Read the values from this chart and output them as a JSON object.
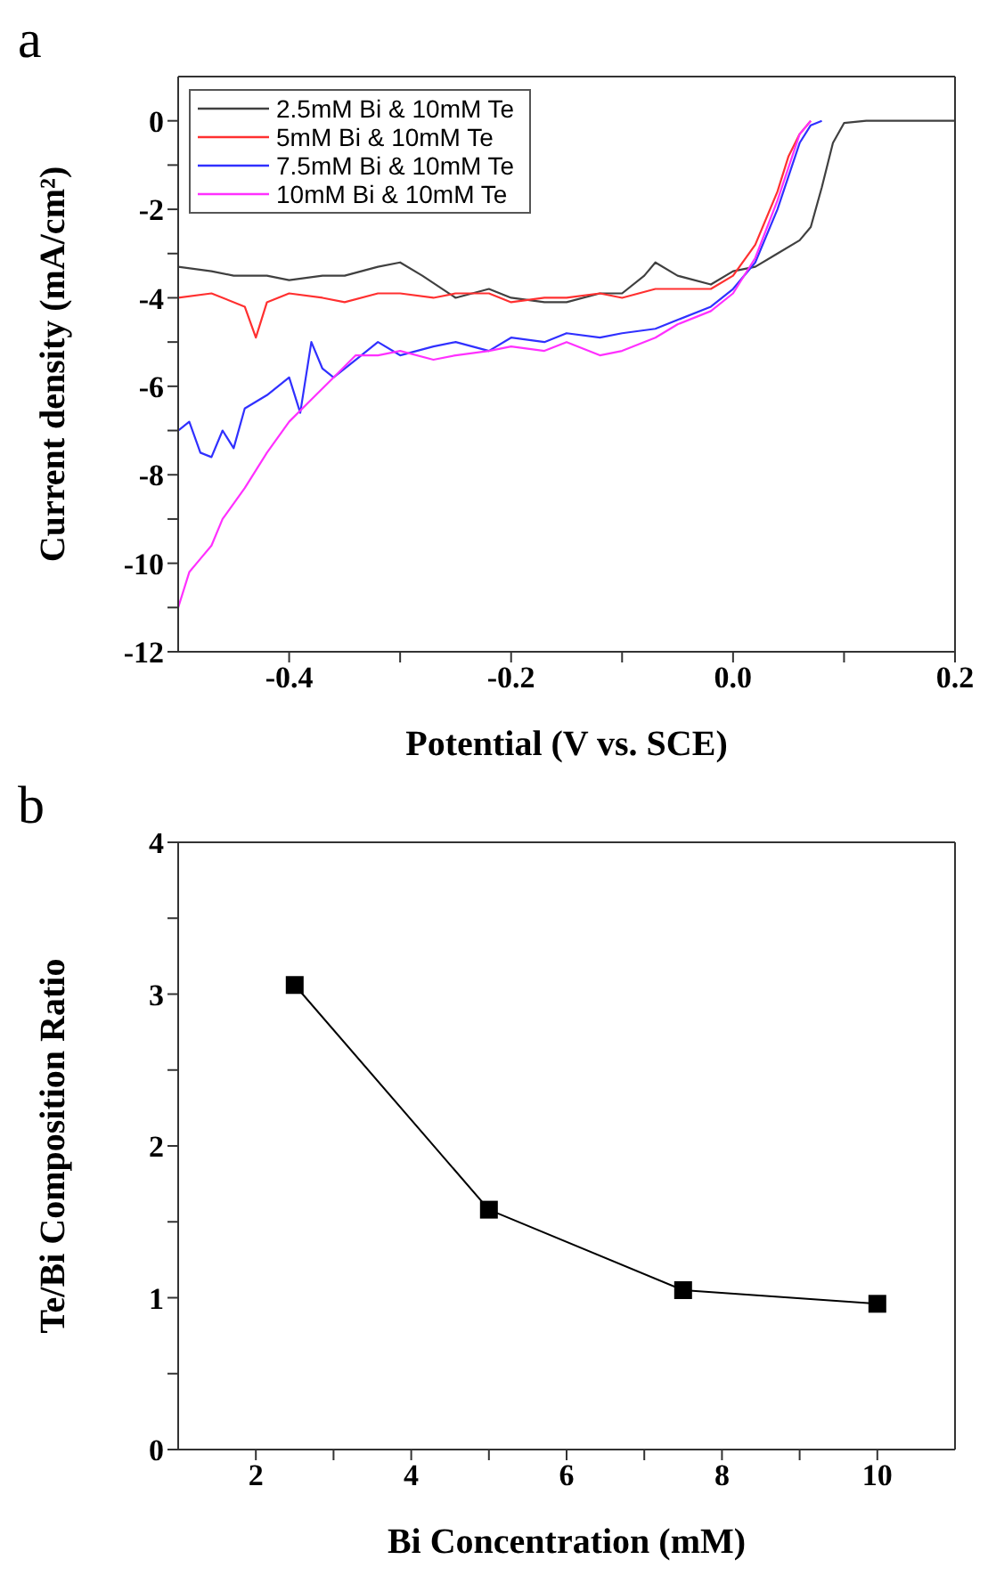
{
  "chart_data": [
    {
      "type": "line",
      "title": "a",
      "xlabel": "Potential (V vs. SCE)",
      "ylabel": "Current density (mA/cm²)",
      "xlim": [
        -0.5,
        0.2
      ],
      "ylim": [
        -12,
        1
      ],
      "xticks": [
        {
          "value": -0.4,
          "label": "-0.4"
        },
        {
          "value": -0.3,
          "label": null
        },
        {
          "value": -0.2,
          "label": "-0.2"
        },
        {
          "value": -0.1,
          "label": null
        },
        {
          "value": 0,
          "label": "0.0"
        },
        {
          "value": 0.1,
          "label": null
        },
        {
          "value": 0.2,
          "label": "0.2"
        }
      ],
      "yticks": [
        -12,
        {
          "value": -11,
          "label": null
        },
        -10,
        {
          "value": -9,
          "label": null
        },
        -8,
        {
          "value": -7,
          "label": null
        },
        -6,
        {
          "value": -5,
          "label": null
        },
        -4,
        {
          "value": -3,
          "label": null
        },
        -2,
        {
          "value": -1,
          "label": null
        },
        0
      ],
      "legend": "top left",
      "grid": false,
      "marker": "none",
      "line_style": "solid",
      "series": [
        {
          "name": "2.5mM Bi & 10mM Te",
          "color": "#404040",
          "x": [
            -0.5,
            -0.47,
            -0.45,
            -0.42,
            -0.4,
            -0.37,
            -0.35,
            -0.32,
            -0.3,
            -0.28,
            -0.25,
            -0.22,
            -0.2,
            -0.17,
            -0.15,
            -0.12,
            -0.1,
            -0.08,
            -0.07,
            -0.05,
            -0.02,
            0,
            0.02,
            0.04,
            0.06,
            0.07,
            0.08,
            0.09,
            0.1,
            0.12,
            0.15,
            0.2
          ],
          "values": [
            -3.3,
            -3.4,
            -3.5,
            -3.5,
            -3.6,
            -3.5,
            -3.5,
            -3.3,
            -3.2,
            -3.5,
            -4.0,
            -3.8,
            -4.0,
            -4.1,
            -4.1,
            -3.9,
            -3.9,
            -3.5,
            -3.2,
            -3.5,
            -3.7,
            -3.4,
            -3.3,
            -3.0,
            -2.7,
            -2.4,
            -1.5,
            -0.5,
            -0.05,
            0,
            0,
            0
          ]
        },
        {
          "name": "5mM Bi & 10mM Te",
          "color": "#ff3030",
          "x": [
            -0.5,
            -0.47,
            -0.44,
            -0.43,
            -0.42,
            -0.4,
            -0.37,
            -0.35,
            -0.32,
            -0.3,
            -0.27,
            -0.25,
            -0.22,
            -0.2,
            -0.17,
            -0.15,
            -0.12,
            -0.1,
            -0.07,
            -0.05,
            -0.02,
            0,
            0.02,
            0.04,
            0.05,
            0.06,
            0.07
          ],
          "values": [
            -4.0,
            -3.9,
            -4.2,
            -4.9,
            -4.1,
            -3.9,
            -4.0,
            -4.1,
            -3.9,
            -3.9,
            -4.0,
            -3.9,
            -3.9,
            -4.1,
            -4.0,
            -4.0,
            -3.9,
            -4.0,
            -3.8,
            -3.8,
            -3.8,
            -3.5,
            -2.8,
            -1.6,
            -0.8,
            -0.3,
            0
          ]
        },
        {
          "name": "7.5mM Bi & 10mM Te",
          "color": "#3030ff",
          "x": [
            -0.5,
            -0.49,
            -0.48,
            -0.47,
            -0.46,
            -0.45,
            -0.44,
            -0.42,
            -0.4,
            -0.39,
            -0.38,
            -0.37,
            -0.36,
            -0.34,
            -0.32,
            -0.3,
            -0.27,
            -0.25,
            -0.22,
            -0.2,
            -0.17,
            -0.15,
            -0.12,
            -0.1,
            -0.07,
            -0.05,
            -0.02,
            0,
            0.02,
            0.04,
            0.06,
            0.07,
            0.08
          ],
          "values": [
            -7.0,
            -6.8,
            -7.5,
            -7.6,
            -7.0,
            -7.4,
            -6.5,
            -6.2,
            -5.8,
            -6.6,
            -5.0,
            -5.6,
            -5.8,
            -5.4,
            -5.0,
            -5.3,
            -5.1,
            -5.0,
            -5.2,
            -4.9,
            -5.0,
            -4.8,
            -4.9,
            -4.8,
            -4.7,
            -4.5,
            -4.2,
            -3.8,
            -3.2,
            -2.0,
            -0.5,
            -0.1,
            0
          ]
        },
        {
          "name": "10mM Bi & 10mM Te",
          "color": "#ff30ff",
          "x": [
            -0.5,
            -0.49,
            -0.48,
            -0.47,
            -0.46,
            -0.44,
            -0.42,
            -0.4,
            -0.38,
            -0.36,
            -0.34,
            -0.32,
            -0.3,
            -0.27,
            -0.25,
            -0.22,
            -0.2,
            -0.17,
            -0.15,
            -0.12,
            -0.1,
            -0.07,
            -0.05,
            -0.02,
            0,
            0.02,
            0.04,
            0.06,
            0.07
          ],
          "values": [
            -11.0,
            -10.2,
            -9.9,
            -9.6,
            -9.0,
            -8.3,
            -7.5,
            -6.8,
            -6.3,
            -5.8,
            -5.3,
            -5.3,
            -5.2,
            -5.4,
            -5.3,
            -5.2,
            -5.1,
            -5.2,
            -5.0,
            -5.3,
            -5.2,
            -4.9,
            -4.6,
            -4.3,
            -3.9,
            -3.1,
            -1.8,
            -0.3,
            0
          ]
        }
      ]
    },
    {
      "type": "line",
      "title": "b",
      "xlabel": "Bi Concentration (mM)",
      "ylabel": "Te/Bi Composition Ratio",
      "xlim": [
        1,
        11
      ],
      "ylim": [
        0,
        4
      ],
      "xticks": [
        2,
        {
          "value": 3,
          "label": null
        },
        4,
        {
          "value": 5,
          "label": null
        },
        6,
        {
          "value": 7,
          "label": null
        },
        8,
        {
          "value": 9,
          "label": null
        },
        10
      ],
      "yticks": [
        0,
        {
          "value": 0.5,
          "label": null
        },
        1,
        {
          "value": 1.5,
          "label": null
        },
        2,
        {
          "value": 2.5,
          "label": null
        },
        3,
        {
          "value": 3.5,
          "label": null
        },
        4
      ],
      "grid": false,
      "marker": "square",
      "line_style": "solid",
      "series": [
        {
          "color": "#000000",
          "x": [
            2.5,
            5,
            7.5,
            10
          ],
          "values": [
            3.06,
            1.58,
            1.05,
            0.96
          ]
        }
      ]
    }
  ]
}
